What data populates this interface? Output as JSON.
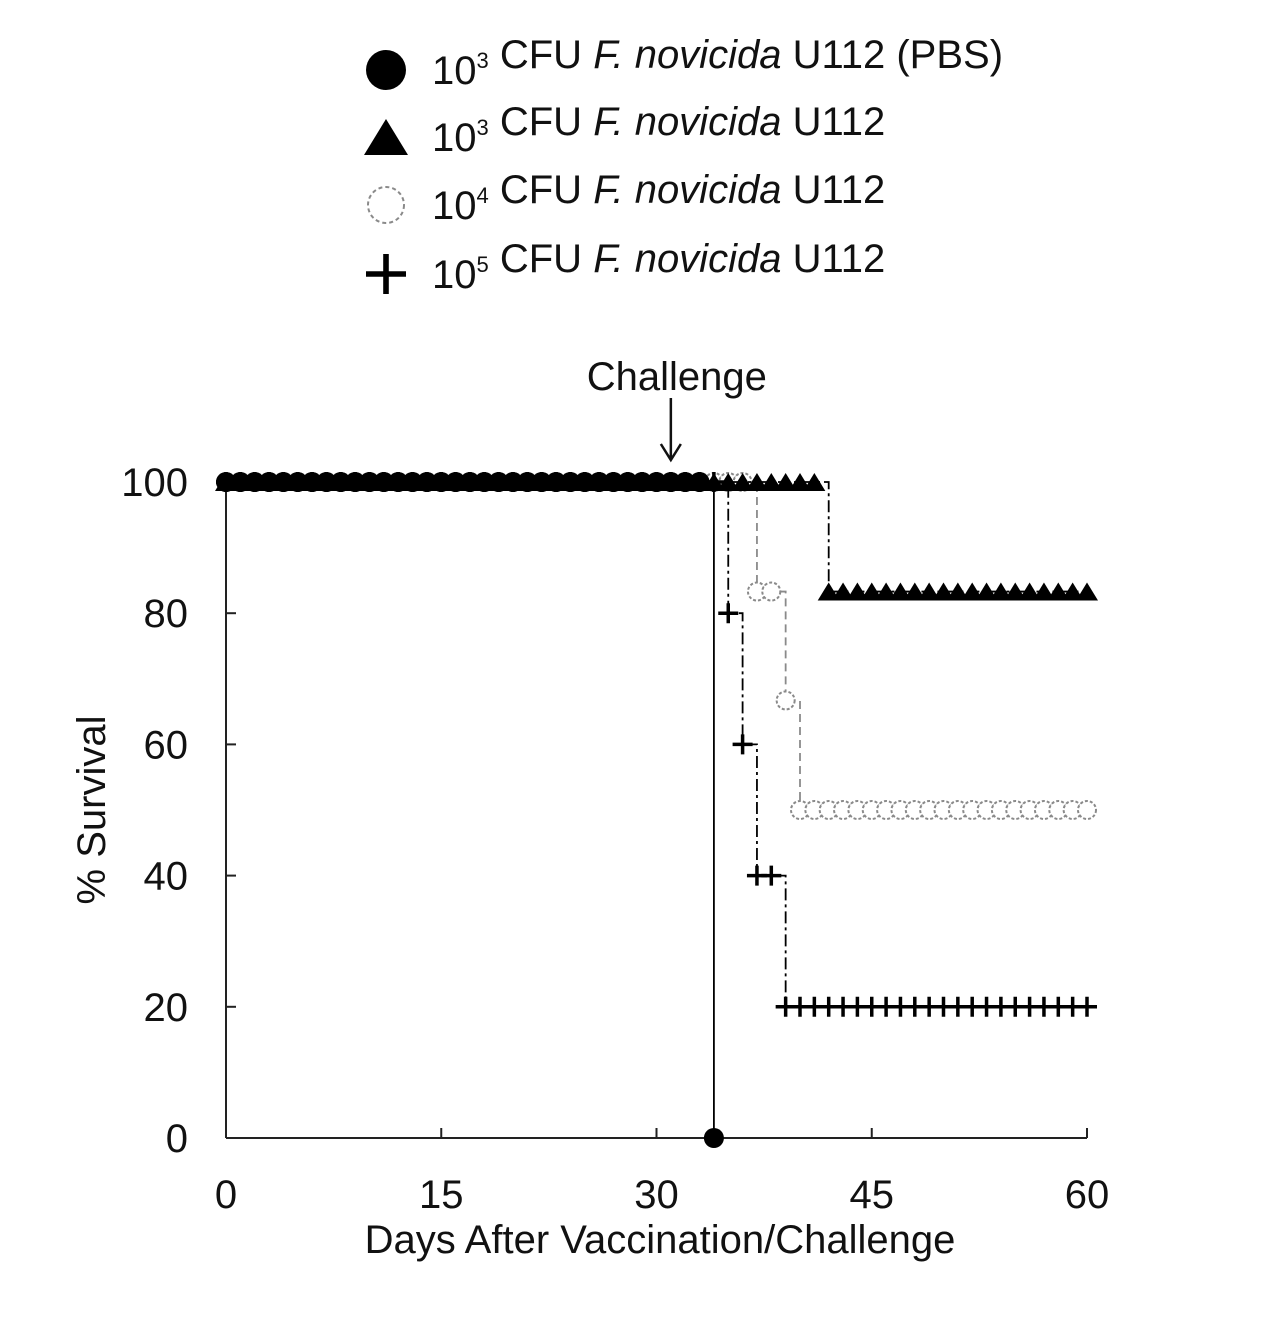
{
  "chart_data": {
    "type": "line",
    "title": "",
    "xlabel": "Days After Vaccination/Challenge",
    "ylabel": "% Survival",
    "xlim": [
      0,
      60
    ],
    "ylim": [
      0,
      100
    ],
    "xticks": [
      0,
      15,
      30,
      45,
      60
    ],
    "yticks": [
      0,
      20,
      40,
      60,
      80,
      100
    ],
    "grid": false,
    "legend_position": "top-center",
    "annotation": {
      "text": "Challenge",
      "x": 31
    },
    "series": [
      {
        "name": "10³ CFU F. novicida U112 (PBS)",
        "legend": {
          "exponent": "3",
          "prefix": "10",
          "middle": " CFU ",
          "species": "F. novicida",
          "suffix": " U112 (PBS)"
        },
        "marker": "filled-circle",
        "color": "#000000",
        "line_style": "solid",
        "steps": [
          [
            0,
            100
          ],
          [
            34,
            0
          ]
        ],
        "end_x": 34,
        "marker_x": [
          0,
          1,
          2,
          3,
          4,
          5,
          6,
          7,
          8,
          9,
          10,
          11,
          12,
          13,
          14,
          15,
          16,
          17,
          18,
          19,
          20,
          21,
          22,
          23,
          24,
          25,
          26,
          27,
          28,
          29,
          30,
          31,
          32,
          33,
          34
        ]
      },
      {
        "name": "10³ CFU F. novicida U112",
        "legend": {
          "exponent": "3",
          "prefix": "10",
          "middle": " CFU ",
          "species": "F. novicida",
          "suffix": " U112"
        },
        "marker": "filled-triangle",
        "color": "#000000",
        "line_style": "dashdot",
        "steps": [
          [
            0,
            100
          ],
          [
            42,
            83.3
          ]
        ],
        "end_x": 60,
        "marker_x": [
          0,
          1,
          2,
          3,
          4,
          5,
          6,
          7,
          8,
          9,
          10,
          11,
          12,
          13,
          14,
          15,
          16,
          17,
          18,
          19,
          20,
          21,
          22,
          23,
          24,
          25,
          26,
          27,
          28,
          29,
          30,
          31,
          32,
          33,
          34,
          35,
          36,
          37,
          38,
          39,
          40,
          41,
          42,
          43,
          44,
          45,
          46,
          47,
          48,
          49,
          50,
          51,
          52,
          53,
          54,
          55,
          56,
          57,
          58,
          59,
          60
        ]
      },
      {
        "name": "10⁴ CFU F. novicida U112",
        "legend": {
          "exponent": "4",
          "prefix": "10",
          "middle": " CFU ",
          "species": "F. novicida",
          "suffix": " U112"
        },
        "marker": "open-circle",
        "color": "#8a8a8a",
        "line_style": "dashed",
        "steps": [
          [
            0,
            100
          ],
          [
            37,
            83.3
          ],
          [
            39,
            66.7
          ],
          [
            40,
            50
          ]
        ],
        "end_x": 60,
        "marker_x": [
          0,
          1,
          2,
          3,
          4,
          5,
          6,
          7,
          8,
          9,
          10,
          11,
          12,
          13,
          14,
          15,
          16,
          17,
          18,
          19,
          20,
          21,
          22,
          23,
          24,
          25,
          26,
          27,
          28,
          29,
          30,
          31,
          32,
          33,
          34,
          35,
          36,
          37,
          38,
          39,
          40,
          41,
          42,
          43,
          44,
          45,
          46,
          47,
          48,
          49,
          50,
          51,
          52,
          53,
          54,
          55,
          56,
          57,
          58,
          59,
          60
        ]
      },
      {
        "name": "10⁵ CFU F. novicida U112",
        "legend": {
          "exponent": "5",
          "prefix": "10",
          "middle": " CFU ",
          "species": "F. novicida",
          "suffix": " U112"
        },
        "marker": "plus",
        "color": "#000000",
        "line_style": "dashdot",
        "steps": [
          [
            0,
            100
          ],
          [
            35,
            80
          ],
          [
            36,
            60
          ],
          [
            37,
            40
          ],
          [
            39,
            20
          ]
        ],
        "end_x": 60,
        "marker_x": [
          0,
          1,
          2,
          3,
          4,
          5,
          6,
          7,
          8,
          9,
          10,
          11,
          12,
          13,
          14,
          15,
          16,
          17,
          18,
          19,
          20,
          21,
          22,
          23,
          24,
          25,
          26,
          27,
          28,
          29,
          30,
          31,
          32,
          33,
          34,
          35,
          36,
          37,
          38,
          39,
          40,
          41,
          42,
          43,
          44,
          45,
          46,
          47,
          48,
          49,
          50,
          51,
          52,
          53,
          54,
          55,
          56,
          57,
          58,
          59,
          60
        ]
      }
    ]
  }
}
